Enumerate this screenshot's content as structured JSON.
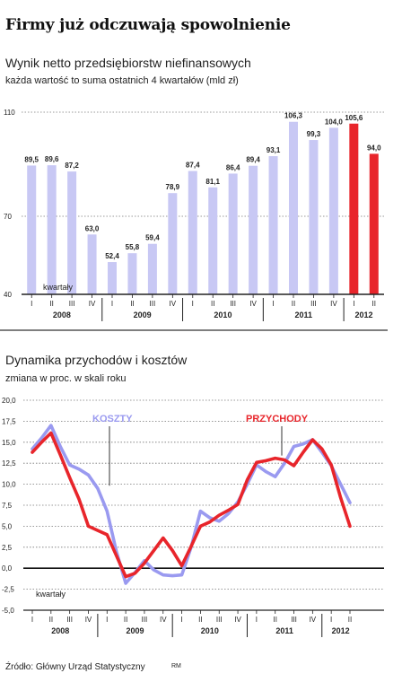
{
  "headline": "Firmy już odczuwają spowolnienie",
  "source": "Źródło: Główny Urząd Statystyczny",
  "initials": "RM",
  "chart_data": [
    {
      "type": "bar",
      "title": "Wynik netto przedsiębiorstw niefinansowych",
      "subtitle": "każda wartość to suma ostatnich 4 kwartałów (mld zł)",
      "categories": [
        "I",
        "II",
        "III",
        "IV",
        "I",
        "II",
        "III",
        "IV",
        "I",
        "II",
        "III",
        "IV",
        "I",
        "II",
        "III",
        "IV",
        "I",
        "II"
      ],
      "years": [
        {
          "label": "2008",
          "start": 0,
          "end": 4
        },
        {
          "label": "2009",
          "start": 4,
          "end": 8
        },
        {
          "label": "2010",
          "start": 8,
          "end": 12
        },
        {
          "label": "2011",
          "start": 12,
          "end": 16
        },
        {
          "label": "2012",
          "start": 16,
          "end": 18
        }
      ],
      "values": [
        89.5,
        89.6,
        87.2,
        63.0,
        52.4,
        55.8,
        59.4,
        78.9,
        87.4,
        81.1,
        86.4,
        89.4,
        93.1,
        106.3,
        99.3,
        104.0,
        105.6,
        94.0
      ],
      "value_labels": [
        "89,5",
        "89,6",
        "87,2",
        "63,0",
        "52,4",
        "55,8",
        "59,4",
        "78,9",
        "87,4",
        "81,1",
        "86,4",
        "89,4",
        "93,1",
        "106,3",
        "99,3",
        "104,0",
        "105,6",
        "94,0"
      ],
      "highlight_from": 16,
      "ylim": [
        40,
        110
      ],
      "yticks": [
        "110",
        "70",
        "40"
      ],
      "ytick_values": [
        110,
        70,
        40
      ],
      "axis_note": "kwartały",
      "colors": {
        "bar": "#c8c8f4",
        "highlight": "#e8252b"
      }
    },
    {
      "type": "line",
      "title": "Dynamika przychodów i kosztów",
      "subtitle": "zmiana w proc. w skali roku",
      "categories": [
        "I",
        "II",
        "III",
        "IV",
        "I",
        "II",
        "III",
        "IV",
        "I",
        "II",
        "III",
        "IV",
        "I",
        "II",
        "III",
        "IV",
        "I",
        "II"
      ],
      "years": [
        {
          "label": "2008",
          "start": 0,
          "end": 4
        },
        {
          "label": "2009",
          "start": 4,
          "end": 8
        },
        {
          "label": "2010",
          "start": 8,
          "end": 12
        },
        {
          "label": "2011",
          "start": 12,
          "end": 16
        },
        {
          "label": "2012",
          "start": 16,
          "end": 18
        }
      ],
      "x": [
        0,
        0.5,
        1,
        1.5,
        2,
        2.5,
        3,
        3.5,
        4,
        4.5,
        5,
        5.5,
        6,
        6.5,
        7,
        7.5,
        8,
        8.5,
        9,
        9.5,
        10,
        10.5,
        11,
        11.5,
        12,
        12.5,
        13,
        13.5,
        14,
        14.5,
        15,
        15.5,
        16,
        16.5,
        17
      ],
      "series": [
        {
          "name": "KOSZTY",
          "color": "#9a9af0",
          "values": [
            14.2,
            15.5,
            17.0,
            14.5,
            12.3,
            11.8,
            11.1,
            9.5,
            6.8,
            2.0,
            -1.8,
            -0.5,
            0.9,
            -0.2,
            -0.8,
            -0.9,
            -0.8,
            2.5,
            6.8,
            6.0,
            5.6,
            6.5,
            7.9,
            10.0,
            12.3,
            11.5,
            10.9,
            12.5,
            14.5,
            14.8,
            15.3,
            13.8,
            12.2,
            10.0,
            7.8
          ]
        },
        {
          "name": "PRZYCHODY",
          "color": "#e8252b",
          "values": [
            13.8,
            15.0,
            16.1,
            13.5,
            10.8,
            8.2,
            5.0,
            4.5,
            4.0,
            1.5,
            -1.0,
            -0.6,
            0.6,
            2.1,
            3.6,
            2.1,
            0.3,
            2.6,
            5.0,
            5.5,
            6.3,
            6.9,
            7.6,
            10.5,
            12.6,
            12.8,
            13.1,
            12.9,
            12.2,
            13.8,
            15.3,
            14.2,
            12.3,
            8.4,
            5.0
          ]
        }
      ],
      "ylim": [
        -5,
        20
      ],
      "yticks": [
        "20,0",
        "17,5",
        "15,0",
        "12,5",
        "10,0",
        "7,5",
        "5,0",
        "2,5",
        "0,0",
        "-2,5",
        "-5,0"
      ],
      "ytick_values": [
        20,
        17.5,
        15,
        12.5,
        10,
        7.5,
        5,
        2.5,
        0,
        -2.5,
        -5
      ],
      "axis_note": "kwartały"
    }
  ]
}
